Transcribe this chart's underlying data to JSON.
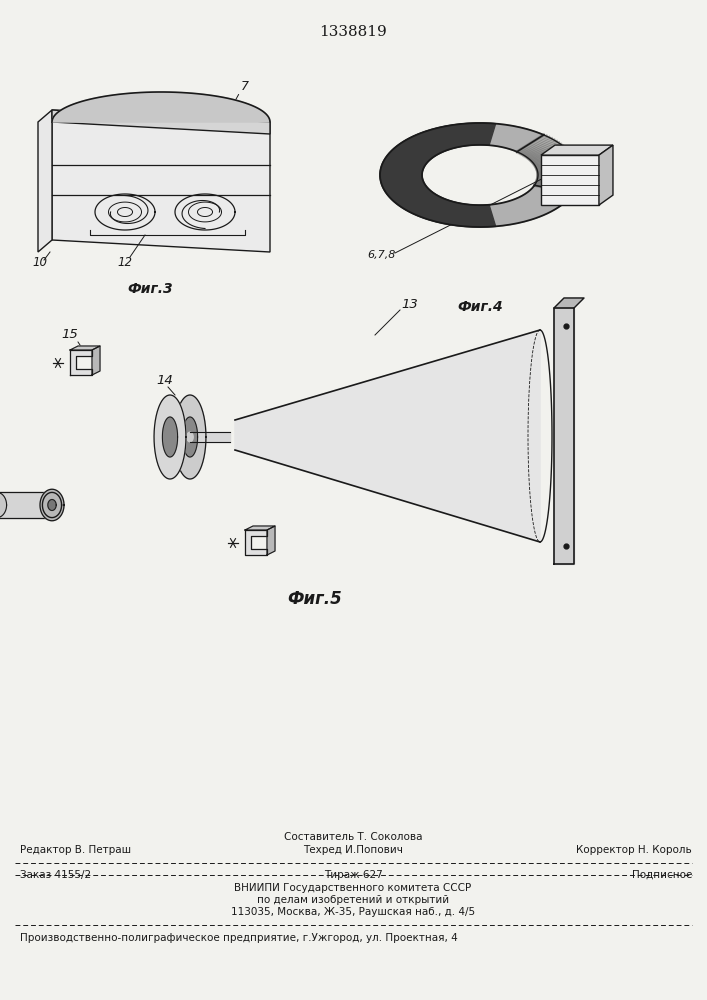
{
  "patent_number": "1338819",
  "bg_color": "#f2f2ee",
  "line_color": "#1a1a1a",
  "fig3_label": "Фиг.3",
  "fig4_label": "Фиг.4",
  "fig5_label": "Фиг.5",
  "label_7": "7",
  "label_10": "10",
  "label_12": "12",
  "label_678": "6,7,8",
  "label_13": "13",
  "label_14": "14",
  "label_15": "15",
  "footer_line1_left": "Редактор В. Петраш",
  "footer_line1_mid": "Техред И.Попович",
  "footer_line1_right": "Корректор Н. Король",
  "footer_compose": "Составитель Т. Соколова",
  "footer_order": "Заказ 4155/2",
  "footer_tirazh": "Тираж 627",
  "footer_podp": "Подписное",
  "footer_vnipi": "ВНИИПИ Государственного комитета СССР",
  "footer_dela": "по делам изобретений и открытий",
  "footer_addr": "113035, Москва, Ж-35, Раушская наб., д. 4/5",
  "footer_prod": "Производственно-полиграфическое предприятие, г.Ужгород, ул. Проектная, 4"
}
